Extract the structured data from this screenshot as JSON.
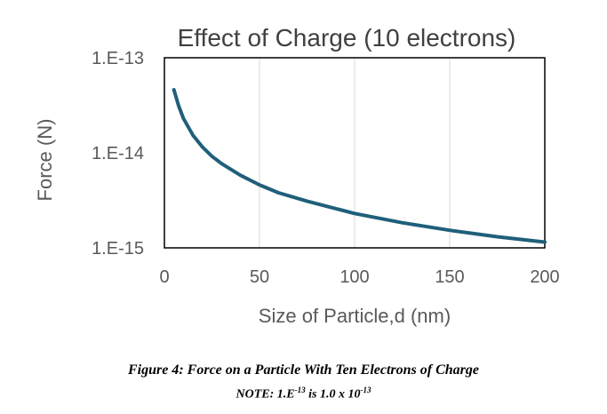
{
  "chart_data": {
    "type": "line",
    "title": "Effect of Charge (10 electrons)",
    "xlabel": "Size of Particle,d (nm)",
    "ylabel": "Force (N)",
    "xlim": [
      0,
      200
    ],
    "ylim": [
      1e-15,
      1e-13
    ],
    "yscale": "log",
    "xticks": [
      0,
      50,
      100,
      150,
      200
    ],
    "xtick_labels": [
      "0",
      "50",
      "100",
      "150",
      "200"
    ],
    "yticks": [
      1e-13,
      1e-14,
      1e-15
    ],
    "ytick_labels": [
      "1.E-13",
      "1.E-14",
      "1.E-15"
    ],
    "grid": "vertical",
    "legend": "none",
    "color": "#1f5f7a",
    "series": [
      {
        "x": [
          5,
          7.5,
          10,
          15,
          20,
          25,
          30,
          40,
          50,
          60,
          75,
          100,
          125,
          150,
          175,
          200
        ],
        "y": [
          4.6e-14,
          3.1e-14,
          2.3e-14,
          1.53e-14,
          1.15e-14,
          9.2e-15,
          7.7e-15,
          5.8e-15,
          4.6e-15,
          3.8e-15,
          3.1e-15,
          2.3e-15,
          1.84e-15,
          1.53e-15,
          1.31e-15,
          1.15e-15
        ]
      }
    ]
  },
  "caption": {
    "line1": "Figure 4:  Force on a Particle With Ten Electrons of Charge",
    "note_prefix": "NOTE: 1.E",
    "note_exp1": "-13",
    "note_mid": " is 1.0 x 10",
    "note_exp2": "-13"
  }
}
